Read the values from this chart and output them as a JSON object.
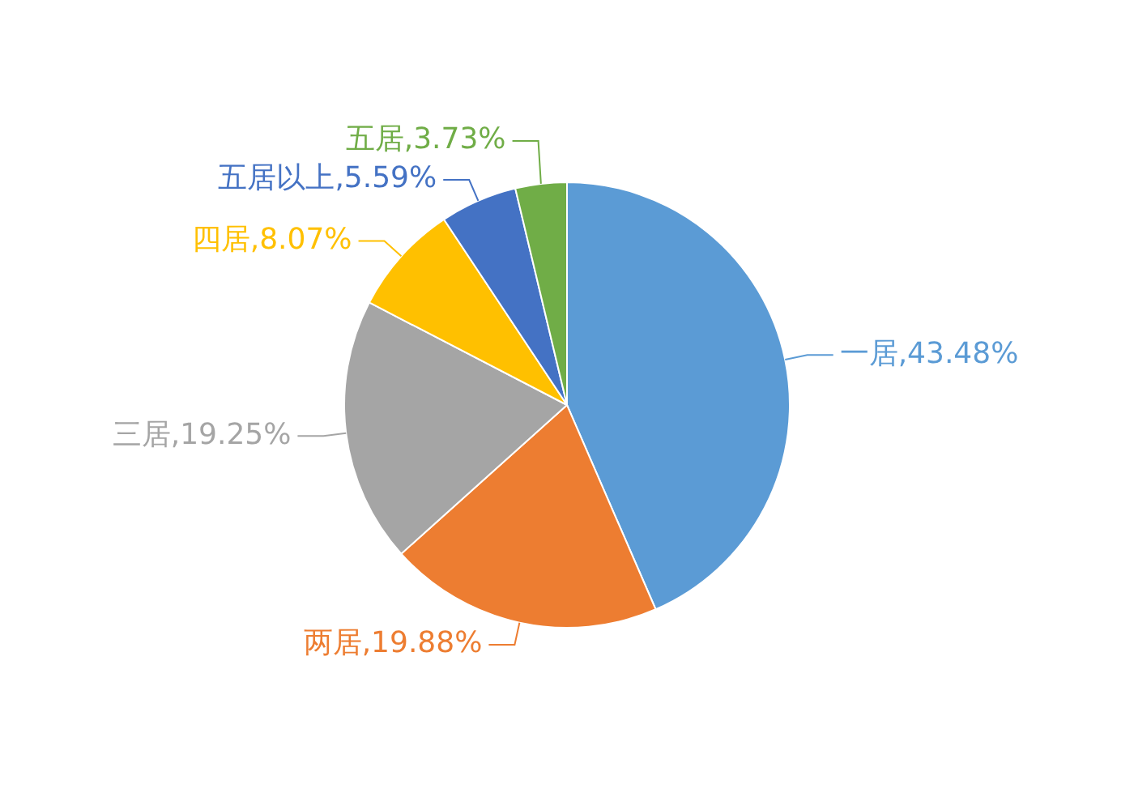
{
  "chart_data": {
    "type": "pie",
    "categories": [
      "一居",
      "两居",
      "三居",
      "四居",
      "五居以上",
      "五居"
    ],
    "values": [
      43.48,
      19.88,
      19.25,
      8.07,
      5.59,
      3.73
    ],
    "colors": [
      "#5b9bd5",
      "#ed7d31",
      "#a5a5a5",
      "#ffc000",
      "#4472c4",
      "#70ad47"
    ],
    "value_labels": [
      ",43.48%",
      ",19.88%",
      ",19.25%",
      ",8.07%",
      ",5.59%",
      ",3.73%"
    ],
    "legend": false
  }
}
